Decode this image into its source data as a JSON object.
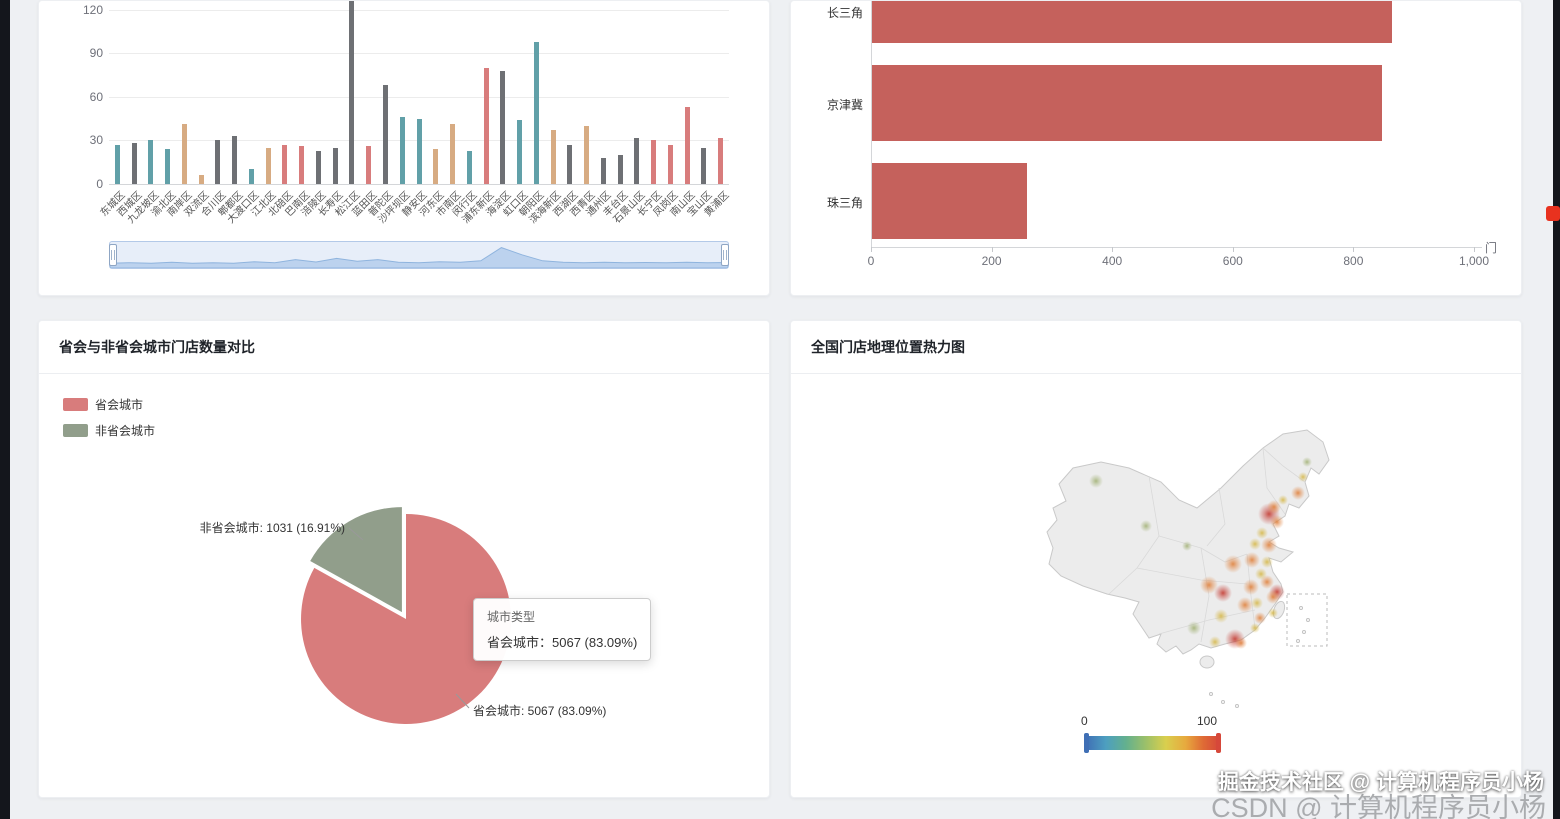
{
  "watermarks": {
    "front": "掘金技术社区 @ 计算机程序员小杨",
    "back": "CSDN @ 计算机程序员小杨"
  },
  "chart_data": [
    {
      "id": "district-store-bar",
      "type": "bar",
      "title": "",
      "ylim": [
        0,
        130
      ],
      "yticks": [
        0,
        30,
        60,
        90,
        120
      ],
      "grid": true,
      "legend_position": "none",
      "palette": {
        "teal": "#61a0a8",
        "gray": "#6e7074",
        "tan": "#d7ab82",
        "red": "#d87c7c"
      },
      "categories": [
        "东城区",
        "西城区",
        "九龙坡区",
        "渝北区",
        "南岸区",
        "双流区",
        "合川区",
        "郫都区",
        "大渡口区",
        "江北区",
        "北碚区",
        "巴南区",
        "涪陵区",
        "长寿区",
        "松江区",
        "蓝田区",
        "普陀区",
        "沙坪坝区",
        "静安区",
        "河东区",
        "市南区",
        "闵行区",
        "浦东新区",
        "海淀区",
        "虹口区",
        "朝阳区",
        "滨海新区",
        "西湖区",
        "西青区",
        "通州区",
        "丰台区",
        "石景山区",
        "长宁区",
        "凤岗区",
        "南山区",
        "宝山区",
        "黄浦区"
      ],
      "values": [
        27,
        28,
        30,
        24,
        41,
        6,
        30,
        33,
        10,
        25,
        27,
        26,
        23,
        25,
        132,
        26,
        68,
        46,
        45,
        24,
        41,
        23,
        80,
        78,
        44,
        98,
        37,
        27,
        40,
        18,
        20,
        32,
        30,
        27,
        53,
        25,
        32
      ],
      "colors": [
        "teal",
        "gray",
        "teal",
        "teal",
        "tan",
        "tan",
        "gray",
        "gray",
        "teal",
        "tan",
        "red",
        "red",
        "gray",
        "gray",
        "gray",
        "red",
        "gray",
        "teal",
        "teal",
        "tan",
        "tan",
        "teal",
        "red",
        "gray",
        "teal",
        "teal",
        "tan",
        "gray",
        "tan",
        "gray",
        "gray",
        "gray",
        "red",
        "red",
        "red",
        "gray",
        "red"
      ],
      "datazoom_profile": [
        0.2,
        0.22,
        0.2,
        0.24,
        0.2,
        0.22,
        0.2,
        0.26,
        0.22,
        0.35,
        0.25,
        0.4,
        0.28,
        0.35,
        0.24,
        0.22,
        0.26,
        0.24,
        0.3,
        0.85,
        0.55,
        0.3,
        0.24,
        0.22,
        0.24,
        0.22,
        0.23,
        0.22,
        0.24,
        0.22,
        0.23
      ]
    },
    {
      "id": "region-store-hbar",
      "type": "bar",
      "orientation": "horizontal",
      "unit": "门",
      "categories": [
        "长三角",
        "京津冀",
        "珠三角"
      ],
      "values": [
        862,
        846,
        257
      ],
      "xlim": [
        0,
        1000
      ],
      "xticks": [
        0,
        200,
        400,
        600,
        800,
        1000
      ],
      "xtick_labels": [
        "0",
        "200",
        "400",
        "600",
        "800",
        "1,000"
      ],
      "bar_color": "#c5615c"
    },
    {
      "id": "capital-vs-noncapital-pie",
      "type": "pie",
      "title": "省会与非省会城市门店数量对比",
      "legend": [
        "省会城市",
        "非省会城市"
      ],
      "slices": [
        {
          "name": "省会城市",
          "value": 5067,
          "pct": 83.09,
          "color": "#d87c7c",
          "label": "省会城市: 5067 (83.09%)"
        },
        {
          "name": "非省会城市",
          "value": 1031,
          "pct": 16.91,
          "color": "#919e8b",
          "label": "非省会城市: 1031 (16.91%)",
          "offset": true
        }
      ],
      "tooltip": {
        "title": "城市类型",
        "line": "省会城市：5067 (83.09%)"
      }
    },
    {
      "id": "national-store-heatmap",
      "type": "heatmap",
      "title": "全国门店地理位置热力图",
      "visual_range": [
        0,
        100
      ],
      "visual_min_label": "0",
      "visual_max_label": "100",
      "heat_colors": {
        "hot": "#c43c33",
        "warm": "#e0823e",
        "mild": "#d6b84b",
        "low": "#a3b277"
      },
      "points": [
        {
          "x": 258,
          "y": 118,
          "r": 11,
          "t": "hot"
        },
        {
          "x": 224,
          "y": 243,
          "r": 10,
          "t": "hot"
        },
        {
          "x": 212,
          "y": 197,
          "r": 9,
          "t": "hot"
        },
        {
          "x": 266,
          "y": 196,
          "r": 8,
          "t": "hot"
        },
        {
          "x": 263,
          "y": 111,
          "r": 7,
          "t": "warm"
        },
        {
          "x": 266,
          "y": 126,
          "r": 7,
          "t": "warm"
        },
        {
          "x": 258,
          "y": 149,
          "r": 8,
          "t": "warm"
        },
        {
          "x": 241,
          "y": 164,
          "r": 8,
          "t": "warm"
        },
        {
          "x": 222,
          "y": 168,
          "r": 9,
          "t": "warm"
        },
        {
          "x": 240,
          "y": 191,
          "r": 8,
          "t": "warm"
        },
        {
          "x": 234,
          "y": 209,
          "r": 8,
          "t": "warm"
        },
        {
          "x": 262,
          "y": 201,
          "r": 7,
          "t": "warm"
        },
        {
          "x": 256,
          "y": 186,
          "r": 7,
          "t": "warm"
        },
        {
          "x": 198,
          "y": 189,
          "r": 9,
          "t": "warm"
        },
        {
          "x": 287,
          "y": 97,
          "r": 7,
          "t": "warm"
        },
        {
          "x": 230,
          "y": 247,
          "r": 6,
          "t": "warm"
        },
        {
          "x": 249,
          "y": 222,
          "r": 6,
          "t": "warm"
        },
        {
          "x": 251,
          "y": 137,
          "r": 6,
          "t": "mild"
        },
        {
          "x": 244,
          "y": 148,
          "r": 6,
          "t": "mild"
        },
        {
          "x": 250,
          "y": 178,
          "r": 6,
          "t": "mild"
        },
        {
          "x": 246,
          "y": 207,
          "r": 6,
          "t": "mild"
        },
        {
          "x": 210,
          "y": 220,
          "r": 7,
          "t": "mild"
        },
        {
          "x": 204,
          "y": 246,
          "r": 6,
          "t": "mild"
        },
        {
          "x": 256,
          "y": 166,
          "r": 6,
          "t": "mild"
        },
        {
          "x": 292,
          "y": 81,
          "r": 5,
          "t": "mild"
        },
        {
          "x": 272,
          "y": 104,
          "r": 5,
          "t": "mild"
        },
        {
          "x": 262,
          "y": 217,
          "r": 5,
          "t": "mild"
        },
        {
          "x": 244,
          "y": 232,
          "r": 5,
          "t": "mild"
        },
        {
          "x": 85,
          "y": 85,
          "r": 7,
          "t": "low"
        },
        {
          "x": 135,
          "y": 130,
          "r": 6,
          "t": "low"
        },
        {
          "x": 183,
          "y": 232,
          "r": 7,
          "t": "low"
        },
        {
          "x": 296,
          "y": 66,
          "r": 5,
          "t": "low"
        },
        {
          "x": 176,
          "y": 150,
          "r": 5,
          "t": "low"
        }
      ]
    }
  ]
}
